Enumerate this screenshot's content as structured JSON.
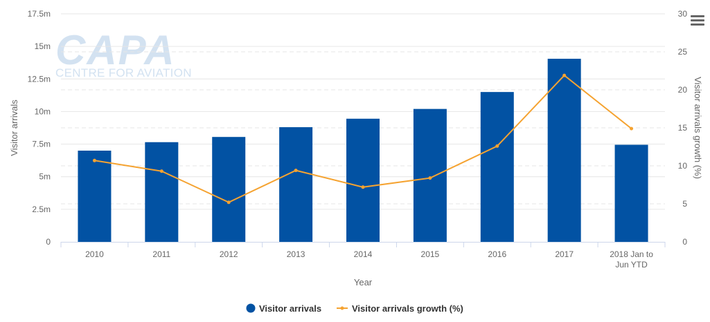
{
  "watermark": {
    "brand": "CAPA",
    "tagline": "CENTRE FOR AVIATION"
  },
  "menu_icon": "hamburger-menu-icon",
  "colors": {
    "bar": "#0252a3",
    "line": "#f5a331",
    "grid": "#e6e6e6",
    "text": "#666666"
  },
  "chart_data": {
    "type": "bar",
    "xlabel": "Year",
    "ylabel": "Visitor arrivals",
    "y2label": "Visitor arrivals growth (%)",
    "categories": [
      "2010",
      "2011",
      "2012",
      "2013",
      "2014",
      "2015",
      "2016",
      "2017",
      "2018 Jan to Jun YTD"
    ],
    "category_lines": [
      [
        "2010"
      ],
      [
        "2011"
      ],
      [
        "2012"
      ],
      [
        "2013"
      ],
      [
        "2014"
      ],
      [
        "2015"
      ],
      [
        "2016"
      ],
      [
        "2017"
      ],
      [
        "2018 Jan to",
        "Jun YTD"
      ]
    ],
    "ylim": [
      0,
      17.5
    ],
    "y_ticks": [
      0,
      2.5,
      5,
      7.5,
      10,
      12.5,
      15,
      17.5
    ],
    "y_tick_labels": [
      "0",
      "2.5m",
      "5m",
      "7.5m",
      "10m",
      "12.5m",
      "15m",
      "17.5m"
    ],
    "y2lim": [
      0,
      30
    ],
    "y2_ticks": [
      0,
      5,
      10,
      15,
      20,
      25,
      30
    ],
    "y2_tick_labels": [
      "0",
      "5",
      "10",
      "15",
      "20",
      "25",
      "30"
    ],
    "series": [
      {
        "name": "Visitor arrivals",
        "type": "bar",
        "axis": "left",
        "values": [
          7.0,
          7.65,
          8.05,
          8.8,
          9.45,
          10.2,
          11.5,
          14.05,
          7.45
        ]
      },
      {
        "name": "Visitor arrivals growth (%)",
        "type": "line",
        "axis": "right",
        "values": [
          10.7,
          9.3,
          5.2,
          9.4,
          7.2,
          8.4,
          12.6,
          21.9,
          14.9
        ]
      }
    ],
    "grid": true,
    "legend": "bottom-center"
  }
}
